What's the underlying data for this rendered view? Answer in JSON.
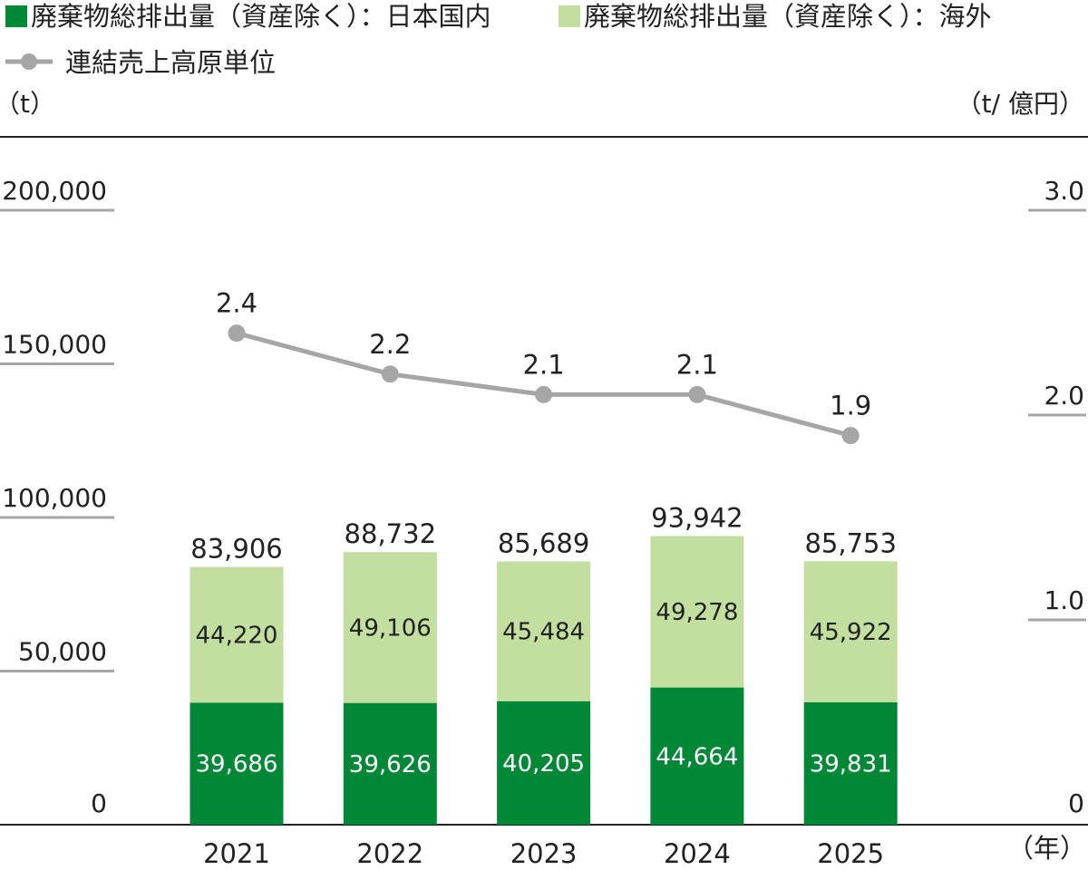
{
  "chart_data": {
    "type": "bar",
    "stacked": true,
    "categories": [
      "2021",
      "2022",
      "2023",
      "2024",
      "2025"
    ],
    "x_unit": "（年）",
    "series": [
      {
        "name": "廃棄物総排出量（資産除く）：日本国内",
        "color": "#008837",
        "values": [
          39686,
          39626,
          40205,
          44664,
          39831
        ],
        "labels": [
          "39,686",
          "39,626",
          "40,205",
          "44,664",
          "39,831"
        ]
      },
      {
        "name": "廃棄物総排出量（資産除く）：海外",
        "color": "#c2df9f",
        "values": [
          44220,
          49106,
          45484,
          49278,
          45922
        ],
        "labels": [
          "44,220",
          "49,106",
          "45,484",
          "49,278",
          "45,922"
        ]
      }
    ],
    "totals": {
      "values": [
        83906,
        88732,
        85689,
        93942,
        85753
      ],
      "labels": [
        "83,906",
        "88,732",
        "85,689",
        "93,942",
        "85,753"
      ]
    },
    "line_series": {
      "name": "連結売上高原単位",
      "color": "#a6a6a6",
      "axis": "right",
      "values": [
        2.4,
        2.2,
        2.1,
        2.1,
        1.9
      ],
      "labels": [
        "2.4",
        "2.2",
        "2.1",
        "2.1",
        "1.9"
      ]
    },
    "left_axis": {
      "unit": "（t）",
      "ylim": [
        0,
        200000
      ],
      "ticks": [
        "200,000",
        "150,000",
        "100,000",
        "50,000",
        "0"
      ]
    },
    "right_axis": {
      "unit": "（t/ 億円）",
      "ylim": [
        0,
        3.0
      ],
      "ticks": [
        "3.0",
        "2.0",
        "1.0",
        "0"
      ]
    },
    "legend_position": "top-left"
  }
}
